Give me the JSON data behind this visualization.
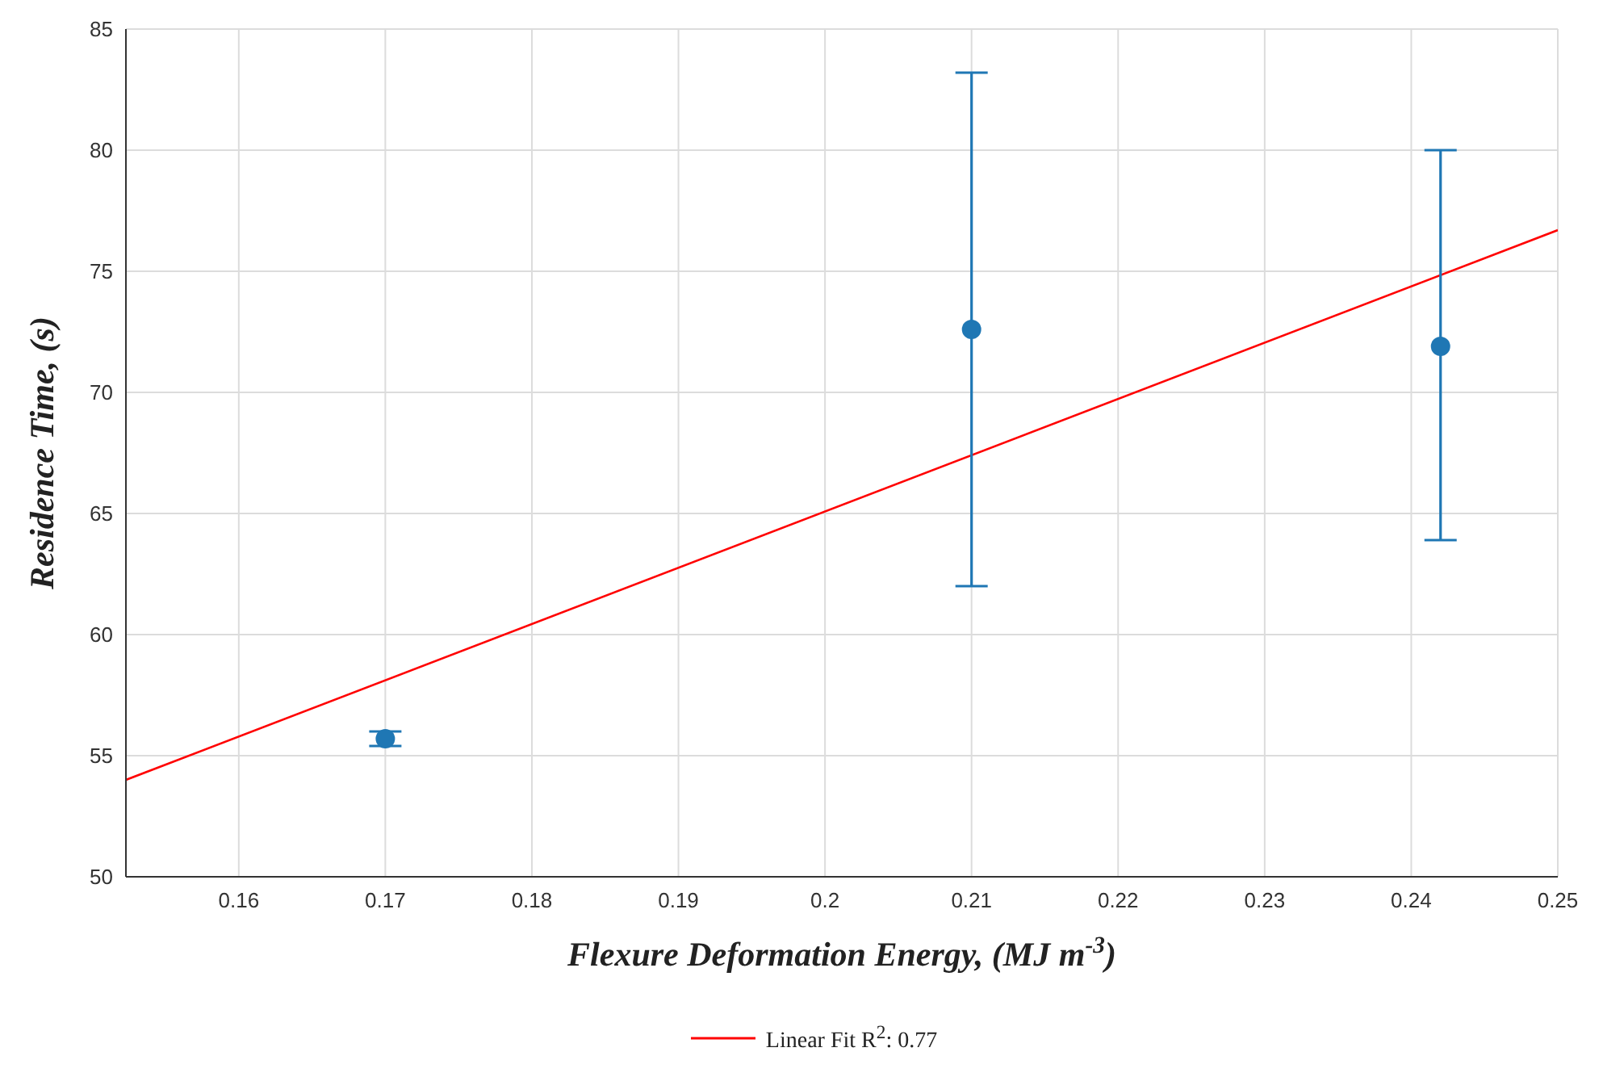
{
  "chart_data": {
    "type": "scatter",
    "xlabel": "Flexure Deformation Energy, (MJ m$^{-3}$)",
    "ylabel": "Residence Time, (s)",
    "xlim": [
      0.1523,
      0.25
    ],
    "xticks": [
      0.16,
      0.17,
      0.18,
      0.19,
      0.2,
      0.21,
      0.22,
      0.23,
      0.24,
      0.25
    ],
    "ylim": [
      50,
      85
    ],
    "yticks": [
      50,
      55,
      60,
      65,
      70,
      75,
      80,
      85
    ],
    "grid": true,
    "legend": "bottom",
    "series": [
      {
        "color": "#1f77b4",
        "marker": "circle",
        "x": [
          0.17,
          0.21,
          0.242
        ],
        "values": [
          55.7,
          72.6,
          71.9
        ],
        "errors": [
          0.3,
          [
            62.0,
            83.2
          ],
          [
            63.9,
            80.0
          ]
        ]
      },
      {
        "type": "line",
        "name": "Linear Fit R$^{2}$: 0.77",
        "color": "#ff0000",
        "marker": "none",
        "x": [
          0.1523,
          0.25
        ],
        "values": [
          54.0,
          76.7
        ]
      }
    ]
  }
}
